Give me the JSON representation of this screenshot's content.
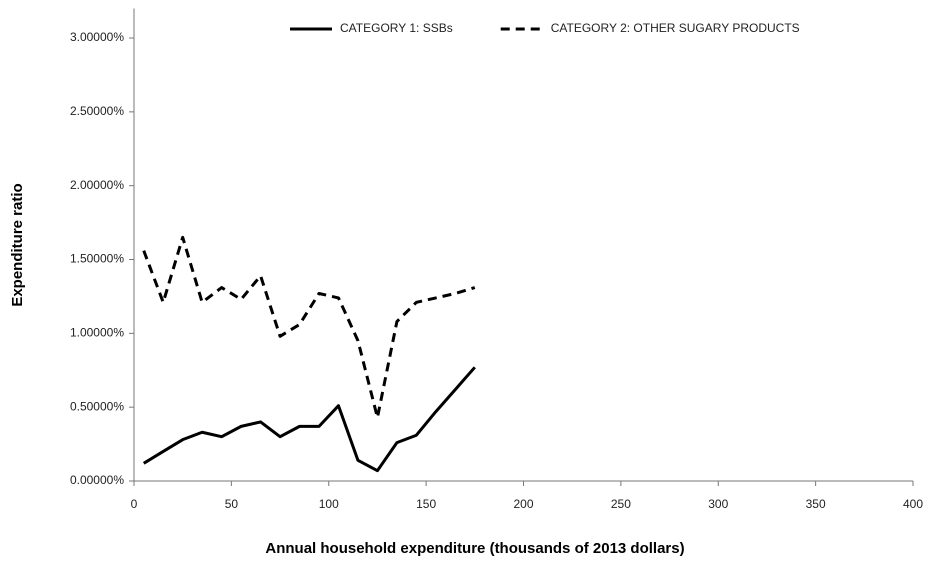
{
  "chart_data": {
    "type": "line",
    "xlabel": "Annual household expenditure (thousands of 2013 dollars)",
    "ylabel": "Expenditure ratio",
    "x": [
      5,
      15,
      25,
      35,
      45,
      55,
      65,
      75,
      85,
      95,
      105,
      115,
      125,
      135,
      145,
      155,
      165,
      175
    ],
    "series": [
      {
        "name": "CATEGORY 1: SSBs",
        "color": "#000000",
        "line_style": "solid",
        "values": [
          0.12,
          0.2,
          0.28,
          0.33,
          0.3,
          0.37,
          0.4,
          0.3,
          0.37,
          0.37,
          0.51,
          0.14,
          0.07,
          0.26,
          0.31,
          0.47,
          0.62,
          0.77
        ]
      },
      {
        "name": "CATEGORY 2: OTHER SUGARY PRODUCTS",
        "color": "#000000",
        "line_style": "dashed",
        "values": [
          1.56,
          1.21,
          1.65,
          1.21,
          1.31,
          1.23,
          1.39,
          0.98,
          1.06,
          1.27,
          1.24,
          0.95,
          0.43,
          1.08,
          1.21,
          1.24,
          1.27,
          1.31
        ]
      }
    ],
    "xlim": [
      0,
      400
    ],
    "xticks": [
      0,
      50,
      100,
      150,
      200,
      250,
      300,
      350,
      400
    ],
    "ylim": [
      0,
      3.2
    ],
    "yticks": [
      {
        "value": 0,
        "label": "0.00000%"
      },
      {
        "value": 0.5,
        "label": "0.50000%"
      },
      {
        "value": 1,
        "label": "1.00000%"
      },
      {
        "value": 1.5,
        "label": "1.50000%"
      },
      {
        "value": 2,
        "label": "2.00000%"
      },
      {
        "value": 2.5,
        "label": "2.50000%"
      },
      {
        "value": 3,
        "label": "3.00000%"
      }
    ],
    "grid": false,
    "legend": "top"
  }
}
